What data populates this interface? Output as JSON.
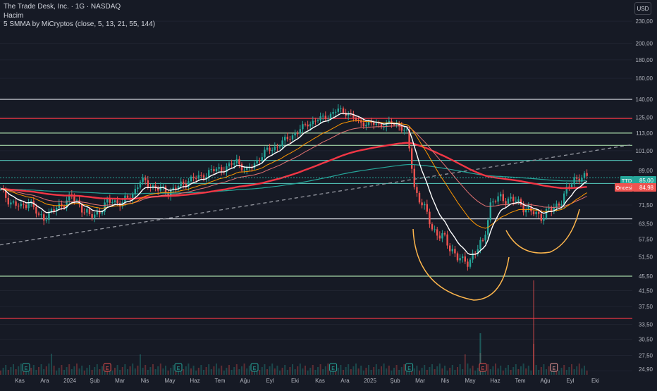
{
  "header": {
    "title": "The Trade Desk, Inc. · 1G · NASDAQ",
    "volume_label": "Hacim",
    "indicator_label": "5 SMMA by MiCryptos (close, 5, 13, 21, 55, 144)",
    "currency": "USD"
  },
  "price_badges": {
    "ticker": "TTD",
    "last_price": "85,00",
    "prev_label": "Öncesi",
    "prev_price": "84,98"
  },
  "colors": {
    "background": "#161a25",
    "bull": "#26a69a",
    "bear": "#ef5350",
    "red_level": "#f23645",
    "green_level": "#a5d6a7",
    "white_level": "#d1d4dc",
    "teal_level": "#4db6ac",
    "smma5": "#ffffff",
    "smma13": "#ff9800",
    "smma21": "#e57373",
    "smma55": "#f23645",
    "smma144": "#26a69a",
    "drawing": "#ffb74d"
  },
  "chart_data": {
    "type": "candlestick",
    "scale": "log",
    "ylim": [
      24.0,
      260.0
    ],
    "y_ticks": [
      "230,00",
      "200,00",
      "180,00",
      "160,00",
      "140,00",
      "125,00",
      "113,00",
      "101,00",
      "89,00",
      "71,50",
      "63,50",
      "57,50",
      "51,50",
      "45,50",
      "41,50",
      "37,50",
      "33,50",
      "30,50",
      "27,50",
      "24,90"
    ],
    "x_ticks": [
      "Kas",
      "Ara",
      "2024",
      "Şub",
      "Mar",
      "Nis",
      "May",
      "Haz",
      "Tem",
      "Ağu",
      "Eyl",
      "Eki",
      "Kas",
      "Ara",
      "2025",
      "Şub",
      "Mar",
      "Nis",
      "May",
      "Haz",
      "Tem",
      "Ağu",
      "Eyl",
      "Eki"
    ],
    "horizontal_levels": [
      {
        "price": 140.0,
        "color": "white_level"
      },
      {
        "price": 124.0,
        "color": "red_level"
      },
      {
        "price": 113.0,
        "color": "green_level"
      },
      {
        "price": 104.5,
        "color": "green_level"
      },
      {
        "price": 95.0,
        "color": "teal_level"
      },
      {
        "price": 82.0,
        "color": "teal_level"
      },
      {
        "price": 65.5,
        "color": "white_level"
      },
      {
        "price": 45.5,
        "color": "green_level"
      },
      {
        "price": 34.8,
        "color": "red_level"
      }
    ],
    "trendline": {
      "from": [
        "Eki 2023",
        55.5
      ],
      "to": [
        "Ağu 2025 +",
        105.0
      ],
      "style": "dashed"
    },
    "price_path": [
      [
        0,
        78
      ],
      [
        4,
        73
      ],
      [
        8,
        70
      ],
      [
        11,
        74
      ],
      [
        15,
        66
      ],
      [
        20,
        68
      ],
      [
        24,
        72
      ],
      [
        28,
        75
      ],
      [
        31,
        72
      ],
      [
        35,
        66
      ],
      [
        40,
        70
      ],
      [
        44,
        74
      ],
      [
        48,
        72
      ],
      [
        52,
        77
      ],
      [
        55,
        83
      ],
      [
        58,
        82
      ],
      [
        62,
        79
      ],
      [
        66,
        78
      ],
      [
        70,
        80
      ],
      [
        74,
        84
      ],
      [
        78,
        85
      ],
      [
        82,
        88
      ],
      [
        86,
        90
      ],
      [
        90,
        91
      ],
      [
        93,
        95
      ],
      [
        97,
        88
      ],
      [
        101,
        95
      ],
      [
        105,
        101
      ],
      [
        109,
        104
      ],
      [
        113,
        109
      ],
      [
        117,
        114
      ],
      [
        121,
        120
      ],
      [
        125,
        123
      ],
      [
        129,
        126
      ],
      [
        133,
        131
      ],
      [
        137,
        128
      ],
      [
        141,
        121
      ],
      [
        145,
        120
      ],
      [
        149,
        119
      ],
      [
        153,
        120
      ],
      [
        157,
        119
      ],
      [
        160,
        113
      ],
      [
        163,
        80
      ],
      [
        166,
        72
      ],
      [
        170,
        62
      ],
      [
        174,
        58
      ],
      [
        178,
        54
      ],
      [
        182,
        49
      ],
      [
        186,
        52
      ],
      [
        190,
        56
      ],
      [
        193,
        72
      ],
      [
        197,
        75
      ],
      [
        201,
        74
      ],
      [
        205,
        72
      ],
      [
        209,
        68
      ],
      [
        213,
        67
      ],
      [
        217,
        69
      ],
      [
        221,
        74
      ],
      [
        224,
        80
      ],
      [
        226,
        85
      ]
    ],
    "volume_spikes": [
      [
        20,
        30
      ],
      [
        55,
        29
      ],
      [
        183,
        29
      ],
      [
        189,
        31
      ],
      [
        210,
        44
      ]
    ],
    "earnings_markers": [
      {
        "label": "E",
        "i": 10,
        "type": "positive"
      },
      {
        "label": "E",
        "i": 42,
        "type": "negative"
      },
      {
        "label": "E",
        "i": 70,
        "type": "positive"
      },
      {
        "label": "E",
        "i": 100,
        "type": "positive"
      },
      {
        "label": "E",
        "i": 131,
        "type": "positive"
      },
      {
        "label": "E",
        "i": 161,
        "type": "positive"
      },
      {
        "label": "E",
        "i": 190,
        "type": "negative"
      },
      {
        "label": "E",
        "i": 218,
        "type": "future"
      }
    ]
  }
}
